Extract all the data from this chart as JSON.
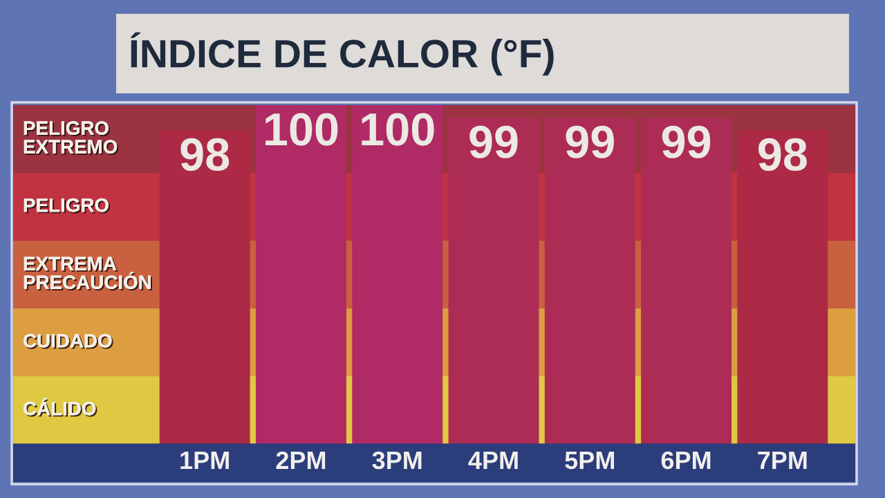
{
  "chart_data": {
    "type": "bar",
    "title": "ÍNDICE DE CALOR (°F)",
    "categories": [
      "1PM",
      "2PM",
      "3PM",
      "4PM",
      "5PM",
      "6PM",
      "7PM"
    ],
    "values": [
      98,
      100,
      100,
      99,
      99,
      99,
      98
    ],
    "colors": [
      "#ac2a45",
      "#b02a65",
      "#b02a65",
      "#ad2c55",
      "#ad2c55",
      "#ad2c55",
      "#ac2a45"
    ],
    "ylim": [
      73,
      100
    ],
    "data_labels": true,
    "tick_labels": "x",
    "bands": [
      {
        "axis": "y",
        "from": 73,
        "to": 78.4,
        "label": "CÁLIDO",
        "color": "#dfc943"
      },
      {
        "axis": "y",
        "from": 78.4,
        "to": 83.8,
        "label": "CUIDADO",
        "color": "#dc9e40"
      },
      {
        "axis": "y",
        "from": 83.8,
        "to": 89.2,
        "label": "EXTREMA\nPRECAUCIÓN",
        "color": "#c9603f"
      },
      {
        "axis": "y",
        "from": 89.2,
        "to": 94.6,
        "label": "PELIGRO",
        "color": "#c13340"
      },
      {
        "axis": "y",
        "from": 94.6,
        "to": 100,
        "label": "PELIGRO\nEXTREMO",
        "color": "#9b3340"
      }
    ]
  }
}
